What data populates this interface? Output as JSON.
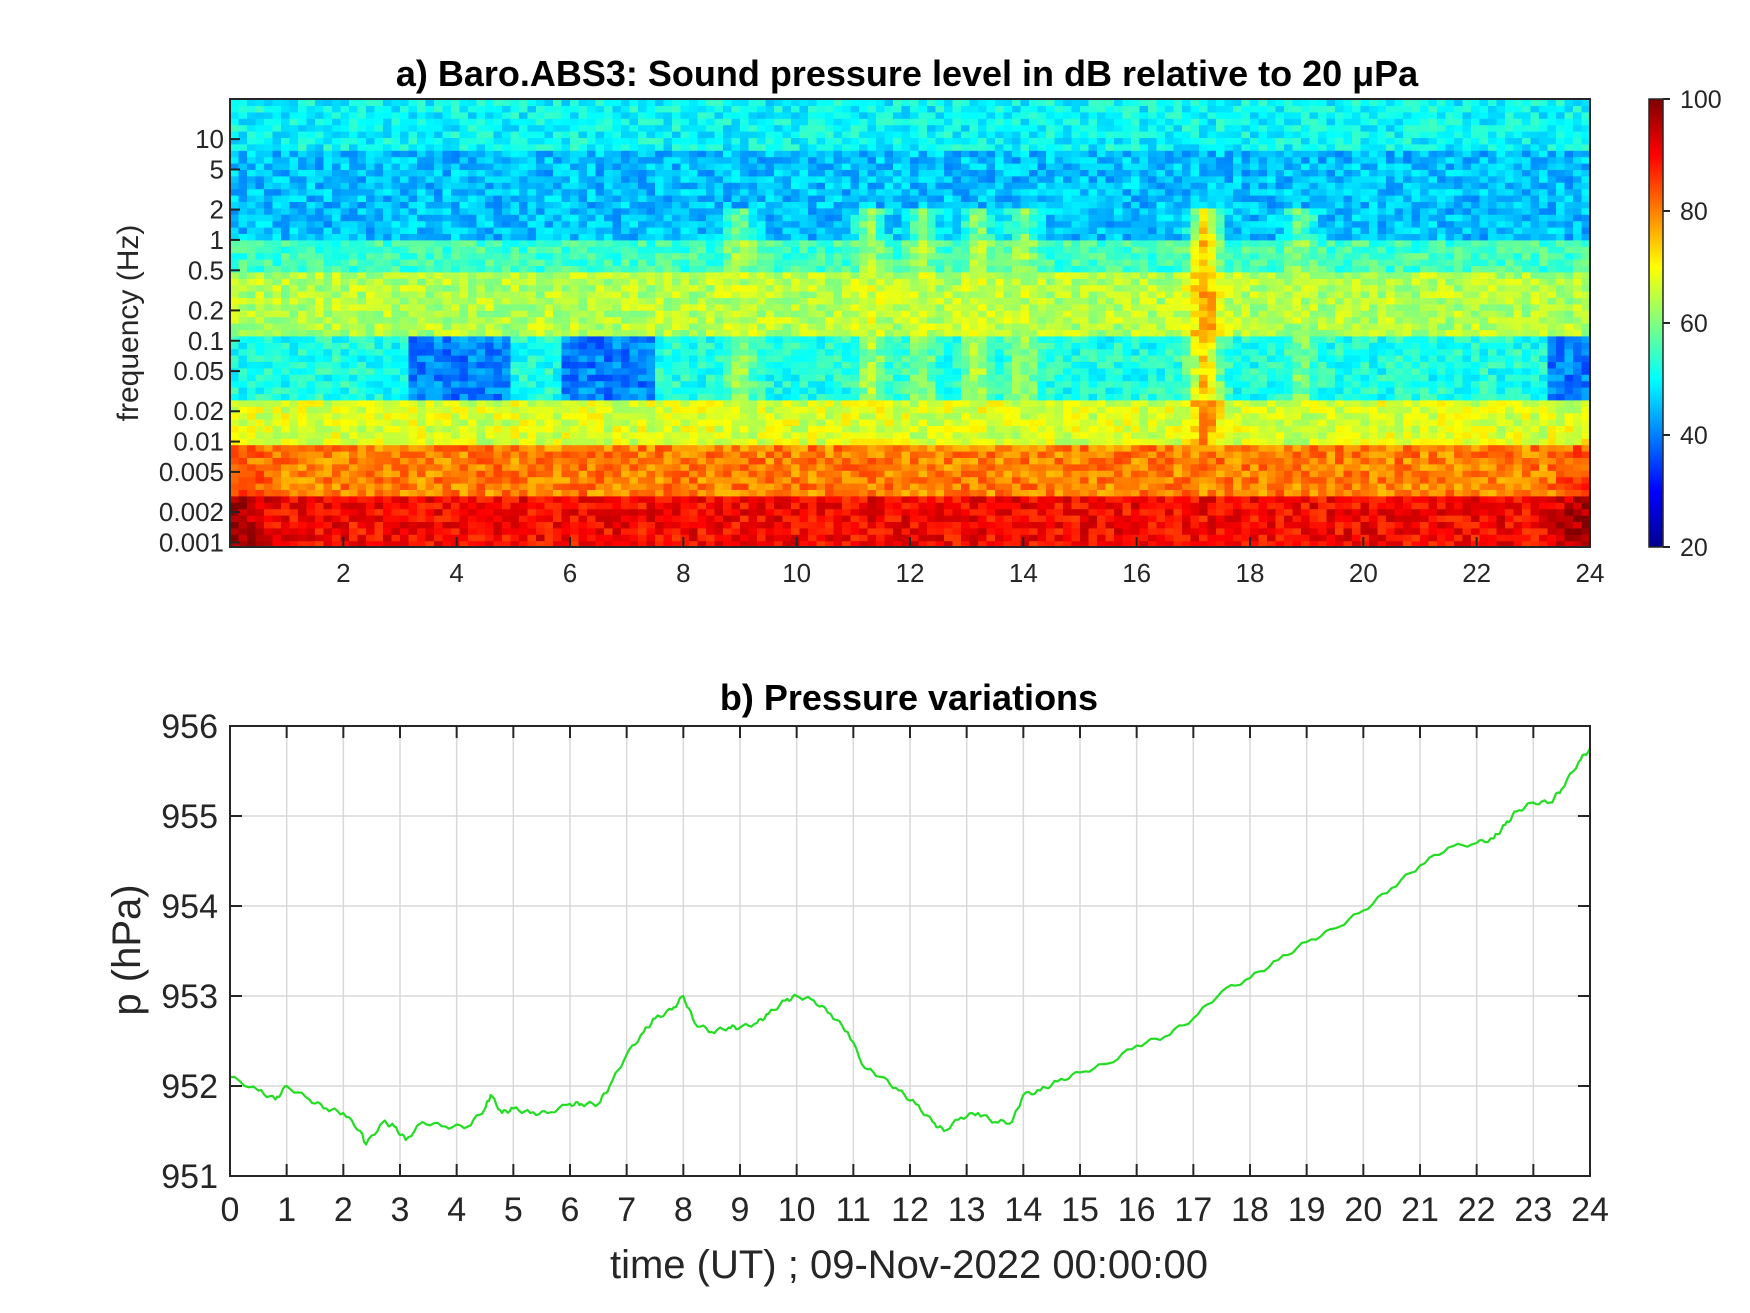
{
  "chart_data": [
    {
      "type": "heatmap",
      "title": "a) Baro.ABS3: Sound pressure level in dB relative to 20 μPa",
      "xlabel": "",
      "ylabel": "frequency (Hz)",
      "xlim": [
        0,
        24
      ],
      "x_ticks": [
        "2",
        "4",
        "6",
        "8",
        "10",
        "12",
        "14",
        "16",
        "18",
        "20",
        "22",
        "24"
      ],
      "yscale": "log",
      "ylim": [
        0.0009,
        25
      ],
      "y_ticks": [
        "0.001",
        "0.002",
        "0.005",
        "0.01",
        "0.02",
        "0.05",
        "0.1",
        "0.2",
        "0.5",
        "1",
        "2",
        "5",
        "10"
      ],
      "colorbar": {
        "min": 20,
        "max": 100,
        "ticks": [
          "100",
          "80",
          "60",
          "40",
          "20"
        ],
        "colormap": "jet"
      },
      "bands_db": [
        {
          "f_min": 0.0009,
          "f_max": 0.003,
          "level": 90
        },
        {
          "f_min": 0.003,
          "f_max": 0.01,
          "level": 80
        },
        {
          "f_min": 0.01,
          "f_max": 0.025,
          "level": 67
        },
        {
          "f_min": 0.025,
          "f_max": 0.12,
          "level": 52
        },
        {
          "f_min": 0.12,
          "f_max": 0.5,
          "level": 64
        },
        {
          "f_min": 0.5,
          "f_max": 1,
          "level": 55
        },
        {
          "f_min": 1,
          "f_max": 8,
          "level": 45
        },
        {
          "f_min": 8,
          "f_max": 25,
          "level": 50
        }
      ],
      "bursts": [
        {
          "t": 9,
          "level": 66
        },
        {
          "t": 11.3,
          "level": 68
        },
        {
          "t": 12.2,
          "level": 66
        },
        {
          "t": 13.2,
          "level": 68
        },
        {
          "t": 14,
          "level": 66
        },
        {
          "t": 17.2,
          "level": 84
        },
        {
          "t": 18.9,
          "level": 64
        }
      ],
      "quiet_intervals": [
        {
          "t_start": 3.2,
          "t_end": 5,
          "level": 40
        },
        {
          "t_start": 5.8,
          "t_end": 7.5,
          "level": 40
        },
        {
          "t_start": 23.3,
          "t_end": 24,
          "level": 40
        }
      ],
      "grid": false
    },
    {
      "type": "line",
      "title": "b) Pressure variations",
      "xlabel": "time (UT) ; 09-Nov-2022 00:00:00",
      "ylabel": "p (hPa)",
      "xlim": [
        0,
        24
      ],
      "ylim": [
        951,
        956
      ],
      "x_ticks": [
        "0",
        "1",
        "2",
        "3",
        "4",
        "5",
        "6",
        "7",
        "8",
        "9",
        "10",
        "11",
        "12",
        "13",
        "14",
        "15",
        "16",
        "17",
        "18",
        "19",
        "20",
        "21",
        "22",
        "23",
        "24"
      ],
      "y_ticks": [
        "951",
        "952",
        "953",
        "954",
        "955",
        "956"
      ],
      "grid": true,
      "line_color": "#22dd22",
      "series": [
        {
          "x": [
            0,
            0.5,
            0.8,
            1,
            1.4,
            1.7,
            2,
            2.3,
            2.4,
            2.7,
            2.9,
            3.1,
            3.4,
            3.8,
            4.2,
            4.5,
            4.6,
            4.8,
            5,
            5.3,
            5.6,
            6,
            6.2,
            6.5,
            6.7,
            7,
            7.3,
            7.5,
            7.8,
            8,
            8.2,
            8.5,
            8.8,
            9,
            9.3,
            9.5,
            9.8,
            10,
            10.3,
            10.6,
            10.9,
            11.2,
            11.5,
            11.8,
            12.1,
            12.4,
            12.6,
            12.9,
            13.2,
            13.5,
            13.8,
            14,
            14.3,
            14.6,
            15,
            15.5,
            16,
            16.5,
            17,
            17.5,
            18,
            18.5,
            19,
            19.5,
            20,
            20.5,
            21,
            21.5,
            22,
            22.3,
            22.5,
            22.7,
            23,
            23.3,
            23.5,
            23.8,
            24
          ],
          "y": [
            952.1,
            951.95,
            951.85,
            952.0,
            951.85,
            951.75,
            951.7,
            951.5,
            951.35,
            951.6,
            951.55,
            951.4,
            951.6,
            951.55,
            951.55,
            951.75,
            951.9,
            951.7,
            951.75,
            951.7,
            951.7,
            951.8,
            951.8,
            951.8,
            952.0,
            952.35,
            952.6,
            952.75,
            952.85,
            953.0,
            952.7,
            952.6,
            952.65,
            952.65,
            952.7,
            952.8,
            952.95,
            953.0,
            952.95,
            952.8,
            952.6,
            952.2,
            952.1,
            951.95,
            951.8,
            951.6,
            951.5,
            951.65,
            951.7,
            951.6,
            951.6,
            951.9,
            951.95,
            952.05,
            952.15,
            952.25,
            952.45,
            952.55,
            952.75,
            953.05,
            953.2,
            953.4,
            953.6,
            953.75,
            953.95,
            954.2,
            954.45,
            954.65,
            954.7,
            954.75,
            954.9,
            955.05,
            955.15,
            955.15,
            955.3,
            955.6,
            955.75
          ]
        }
      ]
    }
  ]
}
